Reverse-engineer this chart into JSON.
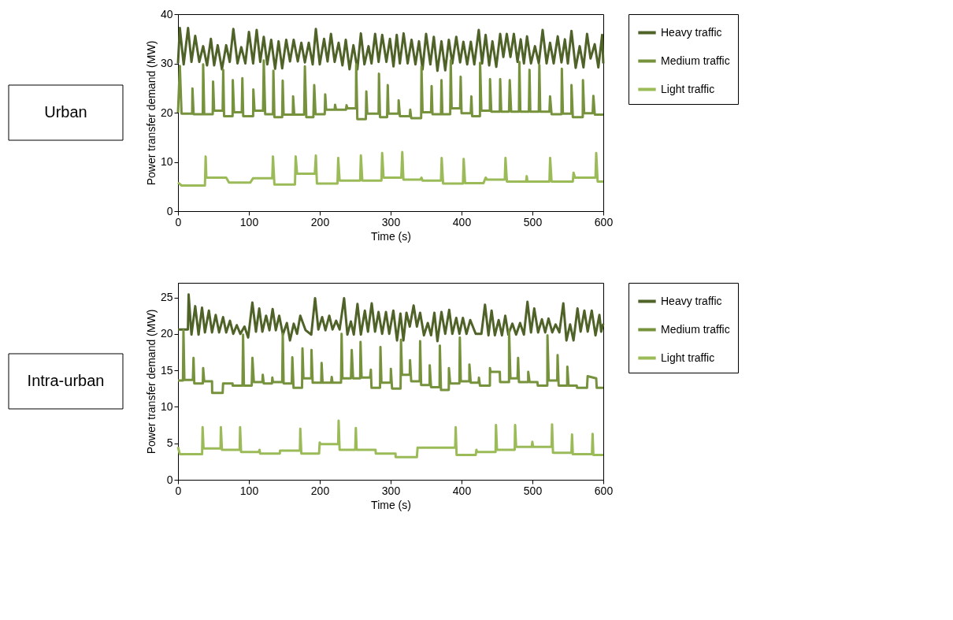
{
  "chart_data": [
    {
      "type": "line",
      "title": "Urban",
      "xlabel": "Time (s)",
      "ylabel": "Power transfer demand (MW)",
      "xlim": [
        0,
        600
      ],
      "ylim": [
        0,
        40
      ],
      "xticks": [
        0,
        100,
        200,
        300,
        400,
        500,
        600
      ],
      "yticks": [
        0,
        10,
        20,
        30,
        40
      ],
      "grid": false,
      "legend": "right",
      "line_style": "solid",
      "series": [
        {
          "name": "Heavy traffic",
          "color": "#4f6228",
          "x": [
            0,
            2.6,
            8,
            14.2,
            19,
            24.3,
            30,
            35.5,
            41,
            46.4,
            51,
            56,
            62,
            68,
            73,
            78.1,
            84,
            89.3,
            95,
            100.1,
            106,
            111,
            116,
            121,
            126,
            131.5,
            137,
            141.9,
            147,
            152.7,
            158,
            163.2,
            169,
            174,
            179,
            184.5,
            190,
            194.5,
            200,
            206.1,
            211,
            215.8,
            221,
            226.6,
            232,
            236.7,
            242,
            247.5,
            253,
            258,
            263,
            268.8,
            273,
            278.1,
            283,
            288.1,
            294,
            299,
            304,
            308.6,
            313,
            318.3,
            324,
            329.5,
            335,
            340,
            345,
            350,
            356,
            360.9,
            366,
            371.7,
            377,
            382.1,
            387,
            392.6,
            398,
            402.6,
            408,
            413.1,
            418,
            424.3,
            429,
            434,
            439,
            443.6,
            449,
            454.5,
            459,
            463.8,
            469,
            473.8,
            479,
            483.5,
            488,
            492.4,
            498,
            503.6,
            509,
            514.4,
            520,
            524.9,
            530,
            535.7,
            541,
            545.8,
            550,
            555.1,
            561,
            566.7,
            572,
            577.1,
            582,
            587.9,
            593,
            598.4,
            600
          ],
          "values": [
            30,
            37.2,
            29.8,
            37.2,
            30.3,
            35.6,
            30.3,
            33.5,
            29.6,
            35.0,
            29.6,
            33.7,
            28.8,
            33.7,
            30.3,
            37.0,
            30.0,
            33.3,
            30.0,
            36.4,
            30.0,
            36.8,
            30.3,
            35.4,
            29.8,
            34.8,
            28.9,
            34.5,
            29.0,
            34.8,
            30.4,
            34.8,
            30.4,
            34.2,
            30.2,
            34.2,
            29.8,
            37.0,
            29.8,
            35.0,
            30.4,
            36.0,
            30.3,
            34.2,
            29.6,
            34.8,
            28.8,
            33.7,
            28.8,
            36.1,
            29.8,
            33.5,
            30.0,
            36.0,
            30.3,
            35.8,
            30.3,
            35.0,
            29.4,
            35.8,
            30.0,
            36.1,
            30.0,
            34.8,
            29.8,
            34.5,
            28.8,
            36.0,
            29.8,
            35.4,
            28.5,
            34.5,
            28.6,
            34.8,
            30.0,
            35.4,
            30.2,
            34.4,
            29.8,
            34.4,
            29.8,
            36.8,
            30.0,
            35.8,
            29.6,
            34.5,
            29.3,
            36.0,
            31.3,
            36.0,
            31.3,
            36.0,
            30.3,
            34.9,
            30.0,
            35.5,
            30.0,
            33.5,
            30.0,
            36.8,
            30.0,
            34.2,
            30.0,
            35.5,
            30.2,
            34.9,
            30.0,
            36.6,
            29.1,
            33.5,
            29.2,
            36.0,
            31.0,
            33.9,
            29.2,
            35.8,
            30.0
          ]
        },
        {
          "name": "Medium traffic",
          "color": "#76923c",
          "x": [
            0,
            2.6,
            5,
            20,
            20.4,
            22,
            35,
            35.5,
            37,
            49,
            49.5,
            51,
            63,
            63.8,
            65,
            77,
            77.3,
            79,
            90,
            90.8,
            92,
            106,
            106.3,
            108,
            120,
            121,
            123,
            134,
            134.6,
            136,
            147,
            147.7,
            149,
            162,
            162.4,
            164,
            178,
            179,
            181,
            191,
            192.2,
            194,
            207,
            207.7,
            209,
            221,
            221.6,
            223,
            237,
            237.8,
            239,
            251,
            251.4,
            253,
            265,
            265.7,
            267,
            283,
            283.5,
            285,
            295,
            295.9,
            297,
            311,
            311.3,
            313,
            327,
            327.6,
            329,
            343,
            343.5,
            345,
            357,
            357.8,
            359,
            371,
            371.7,
            373,
            384,
            384.8,
            386,
            398,
            398.8,
            400,
            413,
            413.9,
            415,
            426,
            426.2,
            428,
            440,
            440.2,
            442,
            454,
            454.5,
            456,
            467,
            468,
            470,
            481,
            481.6,
            483,
            495,
            495.9,
            497,
            509,
            509.8,
            511,
            524,
            524.9,
            527,
            541,
            541.5,
            543,
            555,
            555.1,
            557,
            571,
            571.3,
            573,
            585,
            586,
            588,
            600
          ],
          "values": [
            20.0,
            29.5,
            19.8,
            19.8,
            24.9,
            19.7,
            19.7,
            29.8,
            19.7,
            19.7,
            26.3,
            20.4,
            20.4,
            28.7,
            19.3,
            19.3,
            26.6,
            20.1,
            20.1,
            27.0,
            19.3,
            19.3,
            24.7,
            20.4,
            20.4,
            30.6,
            19.7,
            19.7,
            28.5,
            19.1,
            19.1,
            26.5,
            19.6,
            19.6,
            23.3,
            19.6,
            19.6,
            29.4,
            19.1,
            19.1,
            25.6,
            19.7,
            19.7,
            23.7,
            20.6,
            20.6,
            21.6,
            20.6,
            20.6,
            21.5,
            20.9,
            20.9,
            29.8,
            18.7,
            18.7,
            24.3,
            19.8,
            19.8,
            27.9,
            19.1,
            19.1,
            25.6,
            19.8,
            19.8,
            22.5,
            19.3,
            19.3,
            20.6,
            18.9,
            18.9,
            29.3,
            20.1,
            20.1,
            25.4,
            19.7,
            19.7,
            26.6,
            19.7,
            19.7,
            30.6,
            20.9,
            20.9,
            27.3,
            19.9,
            19.9,
            23.3,
            19.3,
            19.3,
            30.1,
            20.4,
            20.4,
            26.8,
            20.2,
            20.2,
            26.8,
            20.2,
            20.2,
            26.6,
            20.2,
            20.2,
            30.3,
            20.2,
            20.2,
            28.7,
            20.2,
            20.2,
            29.7,
            20.2,
            20.2,
            23.3,
            19.7,
            19.7,
            28.9,
            19.8,
            19.8,
            25.6,
            19.1,
            19.1,
            26.6,
            19.9,
            19.9,
            23.4,
            19.6,
            19.6
          ]
        },
        {
          "name": "Light traffic",
          "color": "#9bbb59",
          "x": [
            0,
            5,
            38,
            39,
            40,
            68,
            72,
            102,
            106,
            133,
            134,
            136,
            165,
            166,
            168,
            193,
            194.5,
            196,
            225,
            226,
            228,
            257,
            258,
            260,
            287,
            288,
            290,
            315,
            316.4,
            318,
            342,
            343.5,
            345,
            371,
            372,
            374,
            402,
            403,
            405,
            431,
            434,
            436,
            461,
            462,
            464,
            491,
            492,
            493,
            524,
            525,
            527,
            557,
            558,
            560,
            589,
            590,
            592,
            600
          ],
          "values": [
            5.8,
            5.2,
            5.2,
            11.1,
            6.8,
            6.8,
            5.8,
            5.8,
            6.7,
            6.7,
            11.1,
            5.4,
            5.4,
            11.1,
            7.6,
            7.6,
            11.3,
            5.6,
            5.6,
            10.8,
            6.2,
            6.2,
            11.3,
            6.2,
            6.2,
            11.8,
            6.8,
            6.8,
            12.0,
            6.4,
            6.4,
            6.8,
            6.2,
            6.2,
            10.8,
            5.6,
            5.6,
            10.6,
            5.7,
            5.7,
            6.8,
            6.4,
            6.4,
            10.8,
            6.0,
            6.0,
            7.1,
            6.0,
            6.0,
            10.8,
            6.0,
            6.0,
            7.8,
            6.8,
            6.8,
            11.8,
            6.0,
            6.0
          ]
        }
      ]
    },
    {
      "type": "line",
      "title": "Intra-urban",
      "xlabel": "Time (s)",
      "ylabel": "Power transfer demand (MW)",
      "xlim": [
        0,
        600
      ],
      "ylim": [
        0,
        27
      ],
      "xticks": [
        0,
        100,
        200,
        300,
        400,
        500,
        600
      ],
      "yticks": [
        0,
        5,
        10,
        15,
        20,
        25
      ],
      "grid": false,
      "legend": "right",
      "line_style": "solid",
      "series": [
        {
          "name": "Heavy traffic",
          "color": "#4f6228",
          "x": [
            0,
            14,
            15,
            19,
            24.3,
            29,
            33.9,
            38,
            43.6,
            48,
            53.2,
            58,
            63.6,
            68,
            73.3,
            78,
            82.9,
            88,
            93.8,
            99,
            104.9,
            110,
            114.6,
            119,
            124.3,
            129,
            133.5,
            138,
            142.8,
            148,
            153.6,
            158,
            163.3,
            168,
            172.5,
            180,
            188,
            193.4,
            198,
            203.4,
            208,
            213.4,
            218,
            223.1,
            228,
            234.3,
            239,
            243.9,
            248,
            253.2,
            258,
            263.6,
            268,
            273.3,
            278,
            282.9,
            288,
            293.4,
            298,
            303.8,
            309,
            313.8,
            318,
            322.3,
            327,
            332.4,
            337,
            341.6,
            347,
            352.4,
            357,
            361.7,
            366,
            371.7,
            377,
            382.6,
            387,
            392.6,
            397,
            401.9,
            407,
            412.3,
            420,
            428,
            433.1,
            438,
            442.4,
            447,
            452.4,
            457,
            461.7,
            466,
            471.7,
            477,
            482.6,
            488,
            493,
            498,
            502.6,
            508,
            513.4,
            518,
            522.7,
            528,
            532.7,
            538,
            543.6,
            548,
            553.2,
            558,
            563.6,
            568,
            573.3,
            578,
            583.7,
            589,
            594.5,
            597,
            600
          ],
          "values": [
            20.6,
            20.6,
            25.4,
            19.9,
            23.8,
            19.9,
            23.6,
            20.2,
            23.2,
            20.2,
            22.6,
            20.2,
            22.3,
            20.2,
            21.8,
            20.0,
            21.2,
            20.0,
            21.0,
            19.5,
            24.3,
            20.3,
            23.5,
            20.3,
            22.5,
            20.5,
            23.4,
            20.5,
            22.5,
            19.9,
            21.5,
            19.1,
            21.4,
            20.0,
            22.5,
            20.5,
            19.9,
            24.9,
            20.6,
            22.3,
            20.5,
            22.5,
            20.6,
            21.8,
            20.6,
            24.9,
            19.9,
            21.7,
            19.9,
            24.1,
            19.9,
            23.2,
            20.3,
            24.2,
            20.3,
            23.0,
            20.0,
            23.0,
            20.0,
            23.2,
            19.1,
            22.8,
            19.1,
            22.9,
            21.0,
            23.9,
            21.0,
            22.9,
            19.8,
            21.5,
            19.8,
            22.9,
            19.0,
            23.0,
            20.0,
            23.3,
            20.0,
            22.2,
            20.0,
            22.2,
            20.0,
            21.9,
            20.0,
            20.0,
            24.0,
            19.8,
            23.2,
            19.8,
            21.9,
            19.8,
            22.5,
            19.9,
            21.4,
            19.9,
            21.5,
            19.9,
            24.4,
            20.2,
            23.5,
            20.2,
            22.0,
            20.2,
            22.1,
            20.2,
            21.3,
            20.2,
            24.2,
            19.1,
            21.3,
            19.1,
            23.5,
            20.3,
            23.2,
            20.3,
            23.2,
            19.8,
            22.6,
            20.3,
            21.4
          ]
        },
        {
          "name": "Medium traffic",
          "color": "#76923c",
          "x": [
            0,
            7,
            7.7,
            9,
            21,
            21.9,
            23,
            35,
            35.5,
            37,
            48,
            48.2,
            63,
            63.6,
            77,
            77.2,
            91,
            91.8,
            93,
            104,
            105,
            107,
            119,
            119.6,
            121,
            132.5,
            133.1,
            134,
            147,
            147.8,
            149,
            160.5,
            161.3,
            163,
            175,
            175.6,
            177,
            188,
            188.3,
            190,
            202,
            202.6,
            204,
            216,
            216.9,
            218,
            230,
            230.8,
            232,
            244,
            245.1,
            247,
            257,
            257.5,
            259,
            271,
            272.1,
            273,
            285,
            285.6,
            287,
            300,
            300.3,
            302,
            314,
            314.6,
            316,
            327,
            327.3,
            329,
            341,
            341.6,
            343,
            355,
            355.1,
            357,
            369,
            369.4,
            371,
            382,
            382.2,
            384,
            397,
            397.6,
            399,
            411,
            411.1,
            413,
            424,
            424.6,
            426,
            440,
            440.1,
            441,
            454,
            454.4,
            467,
            467.1,
            469,
            479,
            479.8,
            481,
            494,
            494.1,
            496,
            507,
            507.6,
            521,
            521.2,
            523,
            535,
            535.5,
            537,
            549,
            549.3,
            551,
            562.5,
            563,
            577,
            577.9,
            590,
            590.7,
            600
          ],
          "values": [
            13.6,
            13.6,
            20.5,
            13.7,
            13.7,
            16.7,
            13.2,
            13.2,
            15.3,
            13.5,
            13.5,
            11.9,
            11.9,
            13.2,
            13.2,
            12.9,
            12.9,
            19.9,
            12.9,
            12.9,
            16.7,
            13.4,
            13.4,
            14.4,
            13.2,
            13.2,
            14.0,
            13.4,
            13.4,
            20.0,
            13.2,
            13.2,
            16.8,
            12.6,
            12.6,
            18.0,
            13.9,
            13.9,
            17.8,
            13.3,
            13.3,
            16.0,
            13.3,
            13.3,
            14.1,
            13.3,
            13.3,
            20.0,
            13.9,
            13.9,
            17.8,
            13.9,
            13.9,
            18.9,
            14.0,
            14.0,
            15.1,
            12.6,
            12.6,
            18.2,
            13.3,
            13.3,
            15.2,
            12.5,
            12.5,
            19.2,
            14.4,
            14.4,
            16.4,
            13.5,
            13.5,
            19.0,
            13.0,
            13.0,
            15.7,
            12.7,
            12.7,
            18.4,
            12.3,
            12.3,
            15.3,
            13.2,
            13.2,
            19.5,
            13.5,
            13.5,
            15.8,
            13.3,
            13.3,
            14.0,
            12.9,
            12.9,
            15.3,
            14.8,
            14.8,
            13.4,
            13.4,
            20.5,
            13.9,
            13.9,
            16.7,
            13.4,
            13.4,
            14.8,
            13.4,
            13.4,
            12.9,
            12.9,
            19.8,
            13.6,
            13.6,
            17.1,
            12.9,
            12.9,
            15.5,
            12.9,
            12.9,
            12.6,
            12.6,
            14.2,
            13.9,
            12.6,
            12.6
          ]
        },
        {
          "name": "Light traffic",
          "color": "#9bbb59",
          "x": [
            0,
            2.6,
            34,
            34.7,
            36,
            60,
            60.5,
            62,
            87,
            87.6,
            89,
            114,
            115,
            116,
            143.6,
            144,
            172,
            172.5,
            174,
            199,
            199.9,
            201,
            226,
            226.6,
            228,
            250,
            250.9,
            252,
            278.7,
            279,
            306.9,
            307,
            337,
            338,
            391,
            391.8,
            393,
            420,
            421,
            422,
            448,
            448.6,
            450,
            475,
            475.6,
            477,
            499,
            499.9,
            501,
            527,
            527.7,
            529,
            555,
            555.9,
            557,
            584,
            584.9,
            586,
            600
          ],
          "values": [
            4.5,
            3.5,
            3.5,
            7.2,
            4.3,
            4.3,
            7.2,
            4.1,
            4.1,
            7.2,
            3.8,
            3.8,
            4.1,
            3.6,
            3.6,
            4.0,
            4.0,
            7.0,
            3.6,
            3.6,
            5.1,
            4.9,
            4.9,
            8.1,
            4.1,
            4.1,
            7.1,
            4.1,
            4.1,
            3.6,
            3.6,
            3.1,
            3.1,
            4.4,
            4.4,
            7.2,
            3.4,
            3.4,
            4.1,
            3.8,
            3.8,
            7.5,
            4.1,
            4.1,
            7.5,
            4.5,
            4.5,
            5.2,
            4.5,
            4.5,
            7.6,
            3.7,
            3.7,
            6.2,
            3.5,
            3.5,
            6.3,
            3.4,
            3.4
          ]
        }
      ]
    }
  ]
}
